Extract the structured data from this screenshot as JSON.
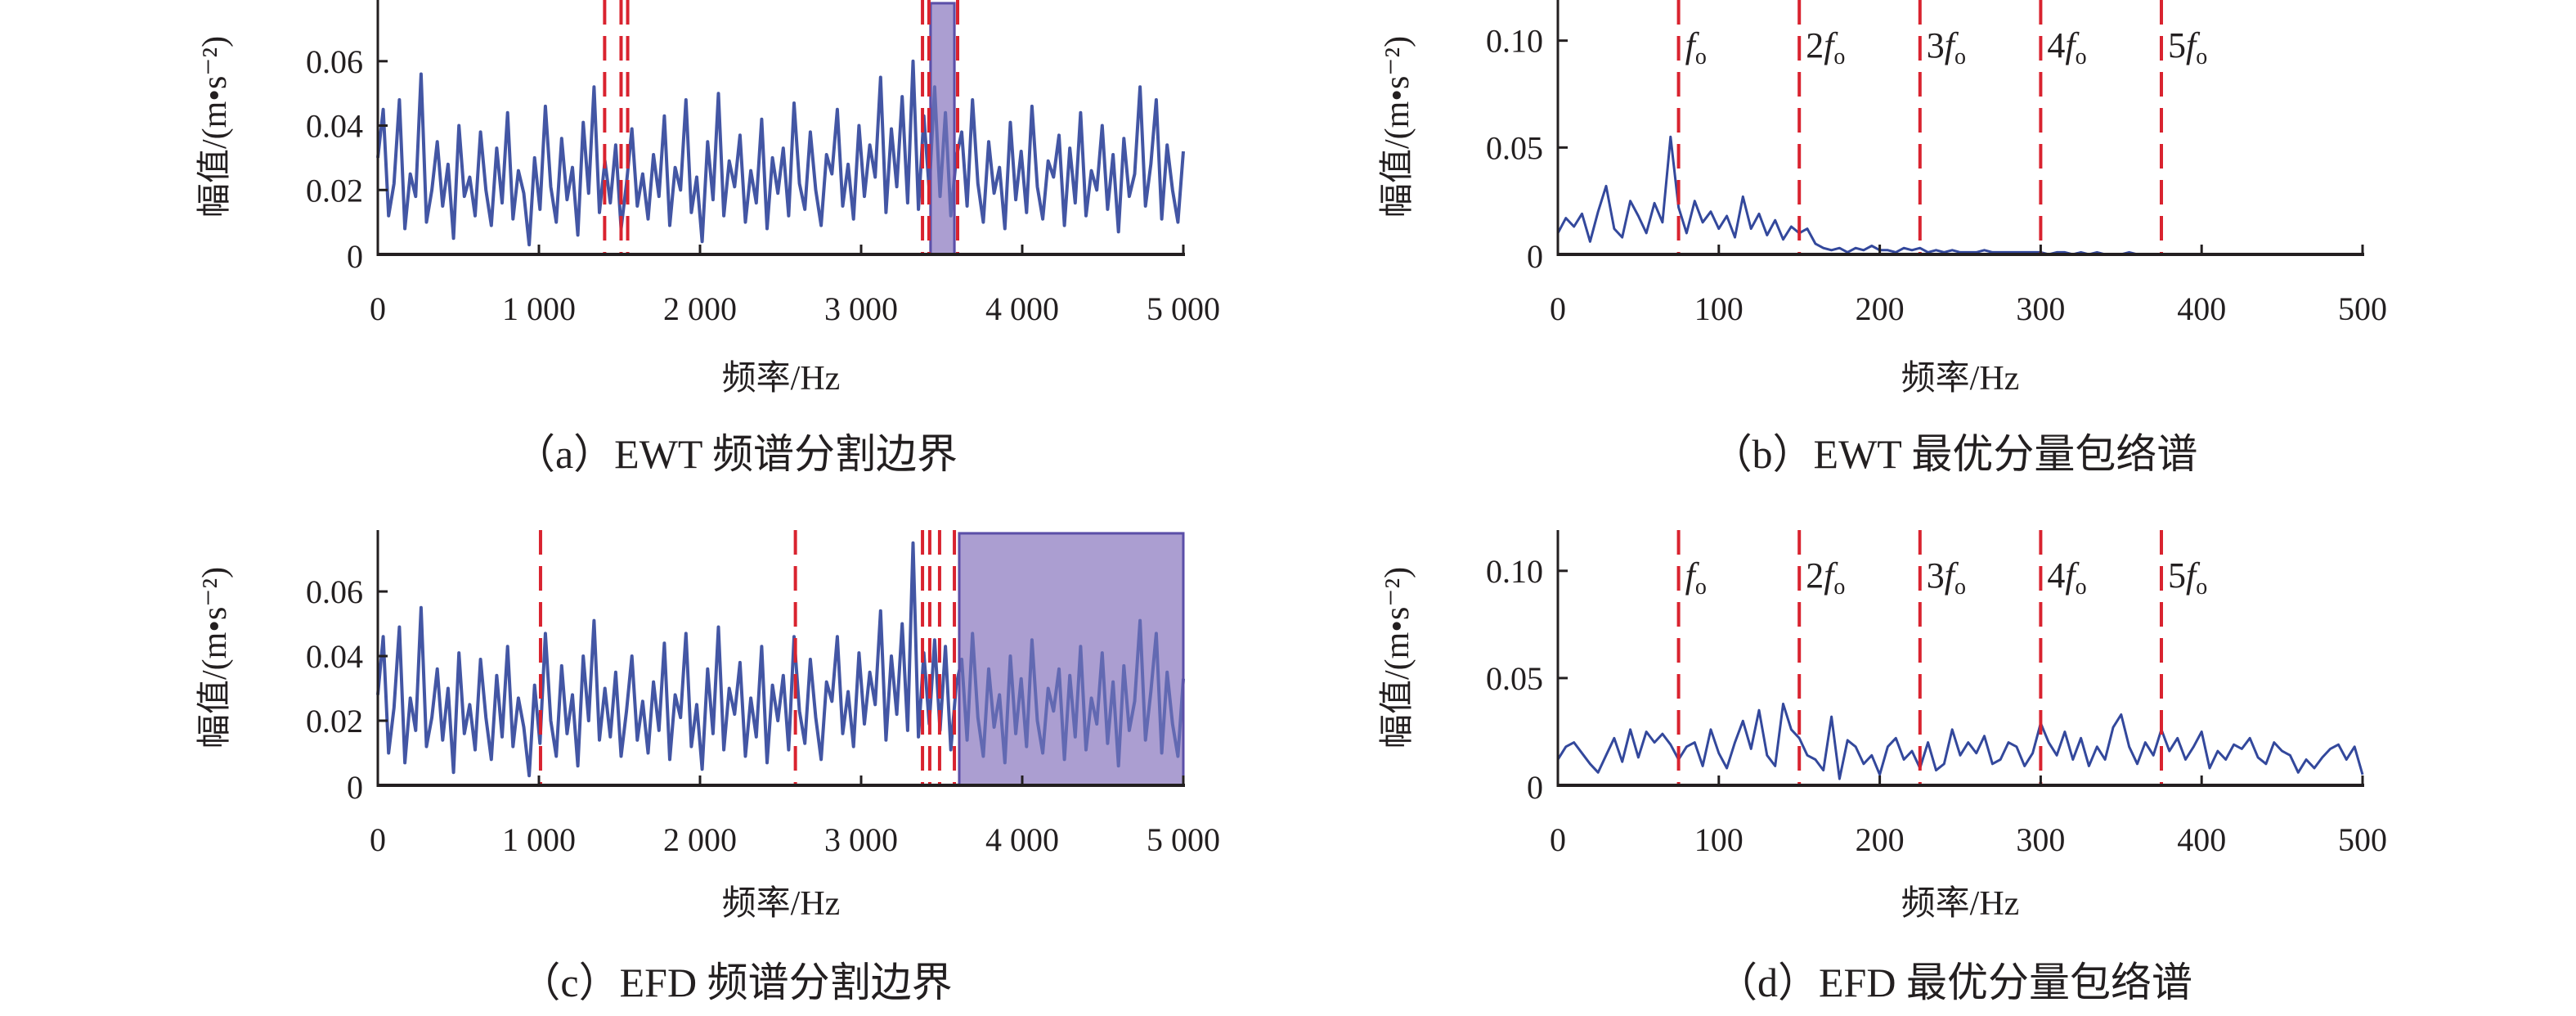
{
  "colors": {
    "series": "#33489c",
    "boundary": "#d9232f",
    "band": "#a99bd0",
    "band_edge": "#5b4fa8",
    "axis": "#231f20"
  },
  "chart_data": [
    {
      "id": "a",
      "type": "line",
      "title": "（a）EWT 频谱分割边界",
      "xlabel": "频率/Hz",
      "ylabel": "幅值/(m•s⁻²)",
      "xlim": [
        0,
        5000
      ],
      "ylim": [
        0,
        0.079
      ],
      "xticks": [
        0,
        1000,
        2000,
        3000,
        4000,
        5000
      ],
      "xtick_labels": [
        "0",
        "1 000",
        "2 000",
        "3 000",
        "4 000",
        "5 000"
      ],
      "yticks": [
        0,
        0.02,
        0.04,
        0.06
      ],
      "ytick_labels": [
        "0",
        "0.02",
        "0.04",
        "0.06"
      ],
      "boundaries": [
        1408,
        1510,
        1551,
        3381,
        3421,
        3599
      ],
      "band": [
        3431,
        3579,
        0.078
      ],
      "harmonics": [],
      "values": [
        0.03,
        0.045,
        0.012,
        0.022,
        0.048,
        0.008,
        0.025,
        0.018,
        0.056,
        0.01,
        0.02,
        0.035,
        0.015,
        0.028,
        0.005,
        0.04,
        0.018,
        0.024,
        0.012,
        0.038,
        0.02,
        0.009,
        0.033,
        0.016,
        0.044,
        0.011,
        0.026,
        0.019,
        0.003,
        0.03,
        0.014,
        0.046,
        0.021,
        0.01,
        0.036,
        0.017,
        0.027,
        0.006,
        0.041,
        0.019,
        0.052,
        0.013,
        0.029,
        0.016,
        0.034,
        0.008,
        0.022,
        0.039,
        0.015,
        0.025,
        0.011,
        0.031,
        0.018,
        0.043,
        0.009,
        0.027,
        0.02,
        0.048,
        0.013,
        0.024,
        0.004,
        0.035,
        0.017,
        0.05,
        0.012,
        0.029,
        0.021,
        0.037,
        0.01,
        0.026,
        0.016,
        0.042,
        0.008,
        0.03,
        0.019,
        0.033,
        0.012,
        0.047,
        0.022,
        0.014,
        0.038,
        0.02,
        0.009,
        0.031,
        0.025,
        0.045,
        0.015,
        0.028,
        0.011,
        0.04,
        0.018,
        0.034,
        0.024,
        0.055,
        0.013,
        0.039,
        0.021,
        0.049,
        0.016,
        0.06,
        0.014,
        0.043,
        0.02,
        0.052,
        0.018,
        0.044,
        0.012,
        0.03,
        0.038,
        0.015,
        0.048,
        0.022,
        0.01,
        0.035,
        0.019,
        0.027,
        0.008,
        0.041,
        0.017,
        0.032,
        0.013,
        0.046,
        0.021,
        0.011,
        0.029,
        0.024,
        0.037,
        0.009,
        0.033,
        0.016,
        0.044,
        0.012,
        0.026,
        0.02,
        0.04,
        0.014,
        0.031,
        0.007,
        0.036,
        0.018,
        0.025,
        0.052,
        0.015,
        0.028,
        0.048,
        0.011,
        0.034,
        0.02,
        0.01,
        0.032
      ]
    },
    {
      "id": "b",
      "type": "line",
      "title": "（b）EWT 最优分量包络谱",
      "xlabel": "频率/Hz",
      "ylabel": "幅值/(m•s⁻²)",
      "xlim": [
        0,
        500
      ],
      "ylim": [
        0,
        0.119
      ],
      "xticks": [
        0,
        100,
        200,
        300,
        400,
        500
      ],
      "xtick_labels": [
        "0",
        "100",
        "200",
        "300",
        "400",
        "500"
      ],
      "yticks": [
        0,
        0.05,
        0.1
      ],
      "ytick_labels": [
        "0",
        "0.05",
        "0.10"
      ],
      "boundaries": [
        75,
        150,
        225,
        300,
        375
      ],
      "band": null,
      "harmonics": [
        {
          "coef": "",
          "sym": "f",
          "sub": "o"
        },
        {
          "coef": "2",
          "sym": "f",
          "sub": "o"
        },
        {
          "coef": "3",
          "sym": "f",
          "sub": "o"
        },
        {
          "coef": "4",
          "sym": "f",
          "sub": "o"
        },
        {
          "coef": "5",
          "sym": "f",
          "sub": "o"
        }
      ],
      "x_step": 5,
      "values": [
        0.01,
        0.017,
        0.013,
        0.019,
        0.006,
        0.02,
        0.032,
        0.012,
        0.008,
        0.025,
        0.018,
        0.01,
        0.024,
        0.015,
        0.055,
        0.022,
        0.01,
        0.025,
        0.015,
        0.02,
        0.012,
        0.018,
        0.008,
        0.027,
        0.012,
        0.019,
        0.009,
        0.016,
        0.007,
        0.013,
        0.01,
        0.012,
        0.005,
        0.003,
        0.002,
        0.003,
        0.001,
        0.003,
        0.002,
        0.004,
        0.002,
        0.002,
        0.001,
        0.003,
        0.002,
        0.003,
        0.001,
        0.002,
        0.001,
        0.002,
        0.001,
        0.001,
        0.001,
        0.002,
        0.001,
        0.001,
        0.001,
        0.001,
        0.001,
        0.001,
        0.001,
        0.0,
        0.001,
        0.001,
        0.0,
        0.001,
        0.0,
        0.001,
        0.0,
        0.0,
        0.0,
        0.001,
        0.0,
        0.0,
        0.0,
        0.0,
        0.0,
        0.0,
        0.0,
        0.0,
        0.0,
        0.0,
        0.0,
        0.0,
        0.0,
        0.0,
        0.0,
        0.0,
        0.0,
        0.0,
        0.0,
        0.0,
        0.0,
        0.0,
        0.0,
        0.0,
        0.0,
        0.0,
        0.0,
        0.0,
        0.0
      ]
    },
    {
      "id": "c",
      "type": "line",
      "title": "（c）EFD 频谱分割边界",
      "xlabel": "频率/Hz",
      "ylabel": "幅值/(m•s⁻²)",
      "xlim": [
        0,
        5000
      ],
      "ylim": [
        0,
        0.079
      ],
      "xticks": [
        0,
        1000,
        2000,
        3000,
        4000,
        5000
      ],
      "xtick_labels": [
        "0",
        "1 000",
        "2 000",
        "3 000",
        "4 000",
        "5 000"
      ],
      "yticks": [
        0,
        0.02,
        0.04,
        0.06
      ],
      "ytick_labels": [
        "0",
        "0.02",
        "0.04",
        "0.06"
      ],
      "boundaries": [
        1010,
        2592,
        3381,
        3426,
        3487,
        3579
      ],
      "band": [
        3609,
        5000,
        0.078
      ],
      "harmonics": [],
      "values": [
        0.028,
        0.046,
        0.01,
        0.024,
        0.049,
        0.007,
        0.027,
        0.017,
        0.055,
        0.012,
        0.021,
        0.036,
        0.014,
        0.03,
        0.004,
        0.041,
        0.016,
        0.025,
        0.011,
        0.039,
        0.021,
        0.008,
        0.034,
        0.015,
        0.043,
        0.012,
        0.027,
        0.018,
        0.003,
        0.031,
        0.013,
        0.047,
        0.02,
        0.009,
        0.037,
        0.016,
        0.028,
        0.006,
        0.04,
        0.02,
        0.051,
        0.014,
        0.03,
        0.015,
        0.035,
        0.009,
        0.023,
        0.04,
        0.014,
        0.026,
        0.01,
        0.032,
        0.017,
        0.044,
        0.008,
        0.028,
        0.021,
        0.047,
        0.012,
        0.025,
        0.005,
        0.036,
        0.016,
        0.049,
        0.011,
        0.03,
        0.022,
        0.038,
        0.009,
        0.027,
        0.015,
        0.043,
        0.007,
        0.031,
        0.02,
        0.034,
        0.011,
        0.046,
        0.023,
        0.013,
        0.039,
        0.021,
        0.008,
        0.032,
        0.026,
        0.046,
        0.016,
        0.029,
        0.012,
        0.041,
        0.019,
        0.035,
        0.025,
        0.054,
        0.014,
        0.04,
        0.022,
        0.05,
        0.017,
        0.075,
        0.015,
        0.041,
        0.019,
        0.045,
        0.017,
        0.043,
        0.011,
        0.031,
        0.039,
        0.014,
        0.047,
        0.021,
        0.009,
        0.036,
        0.018,
        0.028,
        0.007,
        0.04,
        0.016,
        0.033,
        0.012,
        0.045,
        0.02,
        0.01,
        0.03,
        0.023,
        0.036,
        0.008,
        0.034,
        0.015,
        0.043,
        0.011,
        0.027,
        0.019,
        0.041,
        0.013,
        0.032,
        0.006,
        0.037,
        0.017,
        0.026,
        0.051,
        0.014,
        0.029,
        0.047,
        0.01,
        0.035,
        0.019,
        0.009,
        0.033
      ]
    },
    {
      "id": "d",
      "type": "line",
      "title": "（d）EFD 最优分量包络谱",
      "xlabel": "频率/Hz",
      "ylabel": "幅值/(m•s⁻²)",
      "xlim": [
        0,
        500
      ],
      "ylim": [
        0,
        0.119
      ],
      "xticks": [
        0,
        100,
        200,
        300,
        400,
        500
      ],
      "xtick_labels": [
        "0",
        "100",
        "200",
        "300",
        "400",
        "500"
      ],
      "yticks": [
        0,
        0.05,
        0.1
      ],
      "ytick_labels": [
        "0",
        "0.05",
        "0.10"
      ],
      "boundaries": [
        75,
        150,
        225,
        300,
        375
      ],
      "band": null,
      "harmonics": [
        {
          "coef": "",
          "sym": "f",
          "sub": "o"
        },
        {
          "coef": "2",
          "sym": "f",
          "sub": "o"
        },
        {
          "coef": "3",
          "sym": "f",
          "sub": "o"
        },
        {
          "coef": "4",
          "sym": "f",
          "sub": "o"
        },
        {
          "coef": "5",
          "sym": "f",
          "sub": "o"
        }
      ],
      "x_step": 5,
      "values": [
        0.012,
        0.018,
        0.02,
        0.015,
        0.01,
        0.006,
        0.014,
        0.022,
        0.011,
        0.026,
        0.013,
        0.025,
        0.02,
        0.024,
        0.019,
        0.012,
        0.018,
        0.02,
        0.009,
        0.026,
        0.015,
        0.008,
        0.02,
        0.03,
        0.017,
        0.035,
        0.014,
        0.009,
        0.038,
        0.026,
        0.022,
        0.014,
        0.012,
        0.007,
        0.032,
        0.003,
        0.021,
        0.018,
        0.01,
        0.014,
        0.005,
        0.018,
        0.022,
        0.012,
        0.016,
        0.008,
        0.02,
        0.007,
        0.01,
        0.026,
        0.014,
        0.02,
        0.015,
        0.023,
        0.01,
        0.012,
        0.02,
        0.018,
        0.009,
        0.015,
        0.029,
        0.02,
        0.014,
        0.025,
        0.012,
        0.022,
        0.009,
        0.018,
        0.012,
        0.027,
        0.033,
        0.018,
        0.01,
        0.02,
        0.014,
        0.026,
        0.016,
        0.022,
        0.012,
        0.018,
        0.025,
        0.008,
        0.016,
        0.012,
        0.019,
        0.017,
        0.022,
        0.013,
        0.01,
        0.02,
        0.016,
        0.014,
        0.006,
        0.012,
        0.008,
        0.013,
        0.017,
        0.019,
        0.012,
        0.018,
        0.005
      ]
    }
  ]
}
